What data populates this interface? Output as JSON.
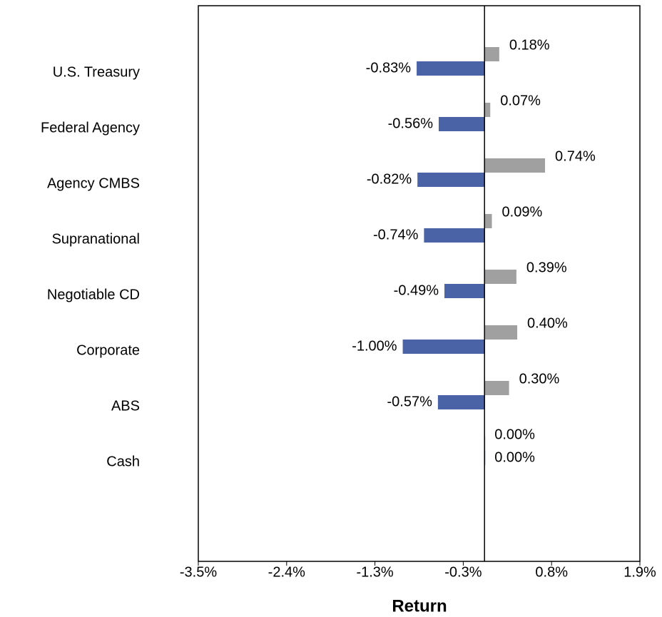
{
  "chart_data": {
    "type": "hbar",
    "x_label": "Return",
    "categories": [
      "U.S. Treasury",
      "Federal Agency",
      "Agency CMBS",
      "Supranational",
      "Negotiable CD",
      "Corporate",
      "ABS",
      "Cash"
    ],
    "series": [
      {
        "color": "#a0a0a0",
        "values": [
          0.18,
          0.07,
          0.74,
          0.09,
          0.39,
          0.4,
          0.3,
          0.0
        ],
        "value_labels": [
          "0.18%",
          "0.07%",
          "0.74%",
          "0.09%",
          "0.39%",
          "0.40%",
          "0.30%",
          "0.00%"
        ]
      },
      {
        "color": "#4a62a6",
        "values": [
          -0.83,
          -0.56,
          -0.82,
          -0.74,
          -0.49,
          -1.0,
          -0.57,
          0.0
        ],
        "value_labels": [
          "-0.83%",
          "-0.56%",
          "-0.82%",
          "-0.74%",
          "-0.49%",
          "-1.00%",
          "-0.57%",
          "0.00%"
        ]
      }
    ],
    "xlim": [
      -3.5,
      1.9
    ],
    "xticks": [
      {
        "value": -3.5,
        "label": "-3.5%"
      },
      {
        "value": -2.42,
        "label": "-2.4%"
      },
      {
        "value": -1.34,
        "label": "-1.3%"
      },
      {
        "value": -0.26,
        "label": "-0.3%"
      },
      {
        "value": 0.82,
        "label": "0.8%"
      },
      {
        "value": 1.9,
        "label": "1.9%"
      }
    ]
  }
}
